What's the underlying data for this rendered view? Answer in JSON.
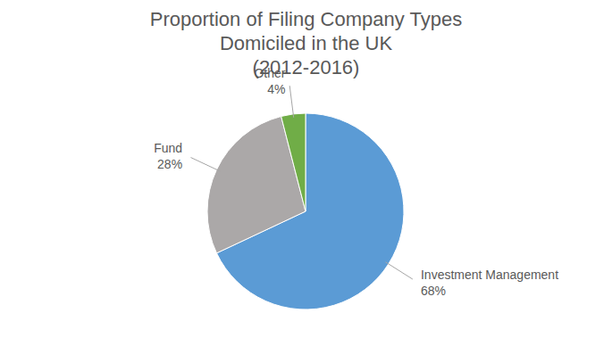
{
  "chart_data": {
    "type": "pie",
    "title": "Proportion of Filing Company Types Domiciled in the UK",
    "subtitle": "(2012-2016)",
    "categories": [
      "Investment Management",
      "Fund",
      "Other"
    ],
    "values": [
      68,
      28,
      4
    ],
    "value_labels": [
      "68%",
      "28%",
      "4%"
    ],
    "colors": [
      "#5B9BD5",
      "#ABA8A8",
      "#70AD47"
    ],
    "data_labels": true
  }
}
